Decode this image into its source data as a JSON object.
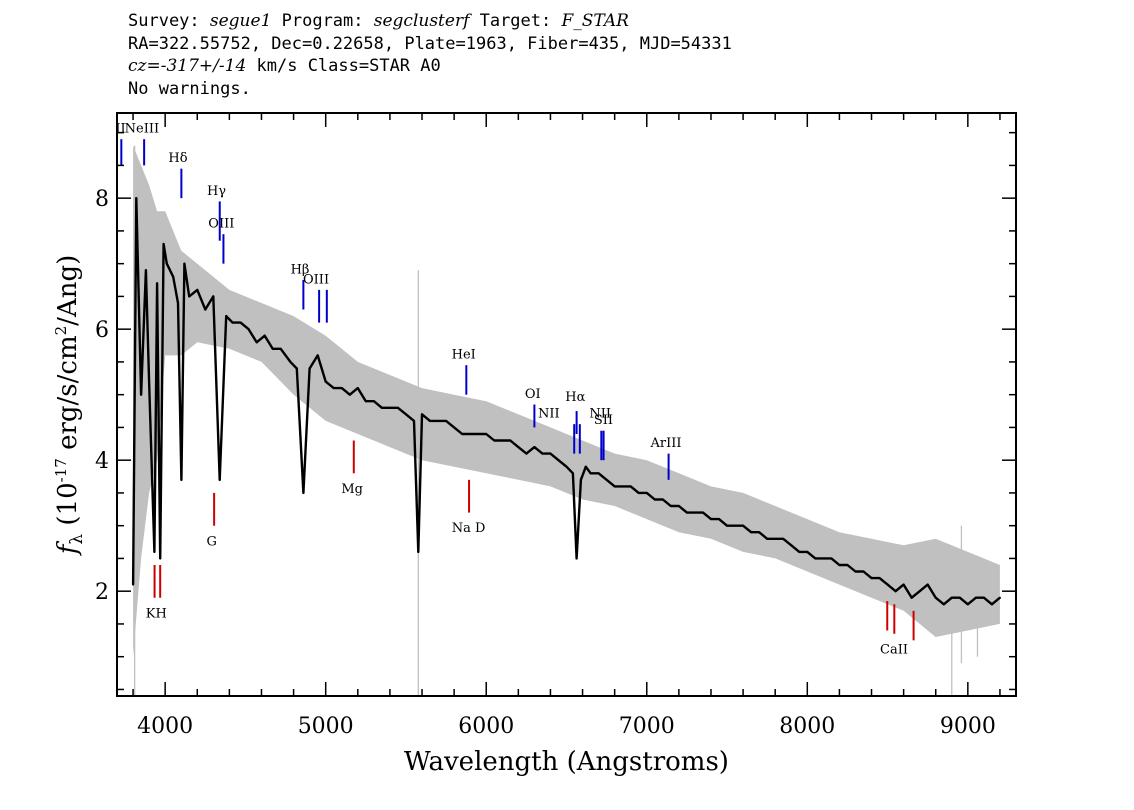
{
  "header": {
    "survey_label": "Survey: ",
    "survey": "segue1",
    "program_label": " Program: ",
    "program": "segclusterf",
    "target_label": " Target: ",
    "target": "F_STAR",
    "line2": "RA=322.55752, Dec=0.22658, Plate=1963, Fiber=435, MJD=54331",
    "cz_label": "cz=",
    "cz": "-317+/-14",
    "cz_rest": " km/s Class=STAR A0",
    "line4": "No warnings."
  },
  "colors": {
    "flux": "#000000",
    "error": "#c0c0c0",
    "emission": "#0000cc",
    "absorption": "#cc0000"
  },
  "chart_data": {
    "type": "line",
    "xlabel": "Wavelength (Angstroms)",
    "ylabel_prefix": "f",
    "ylabel_sub": "λ",
    "ylabel_mid": " (10",
    "ylabel_exp1": "-17",
    "ylabel_rest1": " erg/s/cm",
    "ylabel_exp2": "2",
    "ylabel_rest2": "/Ang)",
    "xlim": [
      3700,
      9300
    ],
    "ylim": [
      0.4,
      9.3
    ],
    "xticks_major": [
      4000,
      5000,
      6000,
      7000,
      8000,
      9000
    ],
    "xtick_labels": [
      "4000",
      "5000",
      "6000",
      "7000",
      "8000",
      "9000"
    ],
    "yticks_major": [
      2,
      4,
      6,
      8
    ],
    "ytick_labels": [
      "2",
      "4",
      "6",
      "8"
    ],
    "series": [
      {
        "role": "flux",
        "x": [
          3800,
          3820,
          3850,
          3880,
          3900,
          3933,
          3950,
          3969,
          3990,
          4010,
          4050,
          4080,
          4101,
          4120,
          4150,
          4200,
          4250,
          4300,
          4340,
          4380,
          4420,
          4470,
          4520,
          4570,
          4620,
          4670,
          4720,
          4780,
          4820,
          4861,
          4900,
          4950,
          5000,
          5050,
          5100,
          5150,
          5200,
          5250,
          5300,
          5350,
          5400,
          5450,
          5500,
          5550,
          5577,
          5600,
          5650,
          5700,
          5750,
          5800,
          5850,
          5900,
          5950,
          6000,
          6050,
          6100,
          6150,
          6200,
          6250,
          6300,
          6350,
          6400,
          6450,
          6500,
          6540,
          6563,
          6590,
          6620,
          6650,
          6700,
          6750,
          6800,
          6850,
          6900,
          6950,
          7000,
          7050,
          7100,
          7150,
          7200,
          7250,
          7300,
          7350,
          7400,
          7450,
          7500,
          7550,
          7600,
          7650,
          7700,
          7750,
          7800,
          7850,
          7900,
          7950,
          8000,
          8050,
          8100,
          8150,
          8200,
          8250,
          8300,
          8350,
          8400,
          8450,
          8500,
          8550,
          8600,
          8650,
          8700,
          8750,
          8800,
          8850,
          8900,
          8950,
          9000,
          9050,
          9100,
          9150,
          9200
        ],
        "values": [
          2.1,
          8.0,
          5.0,
          6.9,
          5.2,
          2.6,
          6.7,
          2.5,
          7.3,
          7.0,
          6.8,
          6.4,
          3.7,
          7.0,
          6.5,
          6.6,
          6.3,
          6.5,
          3.7,
          6.2,
          6.1,
          6.1,
          6.0,
          5.8,
          5.9,
          5.7,
          5.7,
          5.5,
          5.4,
          3.5,
          5.4,
          5.6,
          5.2,
          5.1,
          5.1,
          5.0,
          5.1,
          4.9,
          4.9,
          4.8,
          4.8,
          4.8,
          4.7,
          4.6,
          2.6,
          4.7,
          4.6,
          4.6,
          4.6,
          4.5,
          4.4,
          4.4,
          4.4,
          4.4,
          4.3,
          4.3,
          4.3,
          4.2,
          4.1,
          4.2,
          4.1,
          4.1,
          4.0,
          3.9,
          3.8,
          2.5,
          3.7,
          3.9,
          3.8,
          3.8,
          3.7,
          3.6,
          3.6,
          3.6,
          3.5,
          3.5,
          3.4,
          3.4,
          3.3,
          3.3,
          3.2,
          3.2,
          3.2,
          3.1,
          3.1,
          3.0,
          3.0,
          3.0,
          2.9,
          2.9,
          2.8,
          2.8,
          2.8,
          2.7,
          2.6,
          2.6,
          2.5,
          2.5,
          2.5,
          2.4,
          2.4,
          2.3,
          2.3,
          2.2,
          2.2,
          2.1,
          2.0,
          2.1,
          1.9,
          2.0,
          2.1,
          1.9,
          1.8,
          1.9,
          1.9,
          1.8,
          1.9,
          1.9,
          1.8,
          1.9
        ]
      },
      {
        "role": "error-envelope",
        "x": [
          3800,
          3850,
          3900,
          3950,
          4000,
          4100,
          4200,
          4400,
          4600,
          4800,
          5000,
          5200,
          5400,
          5600,
          5800,
          6000,
          6200,
          6400,
          6600,
          6800,
          7000,
          7200,
          7400,
          7600,
          7800,
          8000,
          8200,
          8400,
          8600,
          8800,
          9000,
          9200
        ],
        "upper": [
          8.8,
          8.5,
          8.2,
          7.8,
          7.8,
          7.2,
          7.0,
          6.6,
          6.4,
          6.2,
          5.9,
          5.5,
          5.3,
          5.1,
          5.0,
          4.9,
          4.7,
          4.5,
          4.3,
          4.1,
          4.0,
          3.8,
          3.6,
          3.5,
          3.3,
          3.1,
          2.9,
          2.8,
          2.7,
          2.8,
          2.6,
          2.4
        ],
        "lower": [
          1.0,
          2.5,
          3.5,
          4.0,
          5.6,
          5.6,
          5.8,
          5.7,
          5.5,
          5.0,
          4.6,
          4.4,
          4.2,
          4.0,
          3.9,
          3.8,
          3.7,
          3.6,
          3.4,
          3.3,
          3.1,
          2.9,
          2.8,
          2.6,
          2.5,
          2.3,
          2.1,
          1.9,
          1.7,
          1.3,
          1.4,
          1.5
        ]
      }
    ],
    "spikes": [
      {
        "x": 3810,
        "top": 8.8,
        "bottom": 0.4
      },
      {
        "x": 5577,
        "top": 6.9,
        "bottom": 0.4
      },
      {
        "x": 8900,
        "top": 2.2,
        "bottom": 0.4
      },
      {
        "x": 8960,
        "top": 3.0,
        "bottom": 0.9
      },
      {
        "x": 9060,
        "top": 2.4,
        "bottom": 1.0
      }
    ],
    "emission_lines": [
      {
        "label": "II",
        "x": 3727,
        "y0": 8.5,
        "y1": 8.9,
        "lx": 3722,
        "ly": 9.0
      },
      {
        "label": "NeIII",
        "x": 3869,
        "y0": 8.5,
        "y1": 8.9,
        "lx": 3855,
        "ly": 9.0
      },
      {
        "label": "Hδ",
        "x": 4101,
        "y0": 8.0,
        "y1": 8.45,
        "lx": 4080,
        "ly": 8.55
      },
      {
        "label": "Hγ",
        "x": 4340,
        "y0": 7.35,
        "y1": 7.95,
        "lx": 4320,
        "ly": 8.05
      },
      {
        "label": "OIII",
        "x": 4363,
        "y0": 7.0,
        "y1": 7.45,
        "lx": 4350,
        "ly": 7.55
      },
      {
        "label": "Hβ",
        "x": 4861,
        "y0": 6.3,
        "y1": 6.75,
        "lx": 4840,
        "ly": 6.85
      },
      {
        "label": "OIII",
        "x": 4959,
        "y0": 6.1,
        "y1": 6.6,
        "lx": 4940,
        "ly": 6.7
      },
      {
        "label": "",
        "x": 5007,
        "y0": 6.1,
        "y1": 6.6,
        "lx": 5007,
        "ly": 6.7
      },
      {
        "label": "HeI",
        "x": 5876,
        "y0": 5.0,
        "y1": 5.45,
        "lx": 5860,
        "ly": 5.55
      },
      {
        "label": "OI",
        "x": 6300,
        "y0": 4.5,
        "y1": 4.85,
        "lx": 6290,
        "ly": 4.95
      },
      {
        "label": "NII",
        "x": 6548,
        "y0": 4.1,
        "y1": 4.55,
        "lx": 6390,
        "ly": 4.65
      },
      {
        "label": "Hα",
        "x": 6563,
        "y0": 4.4,
        "y1": 4.75,
        "lx": 6555,
        "ly": 4.9
      },
      {
        "label": "",
        "x": 6583,
        "y0": 4.1,
        "y1": 4.55,
        "lx": 6583,
        "ly": 4.65
      },
      {
        "label": "NII",
        "x": 6717,
        "y0": 4.0,
        "y1": 4.45,
        "lx": 6710,
        "ly": 4.65
      },
      {
        "label": "SII",
        "x": 6731,
        "y0": 4.0,
        "y1": 4.45,
        "lx": 6730,
        "ly": 4.55
      },
      {
        "label": "ArIII",
        "x": 7136,
        "y0": 3.7,
        "y1": 4.1,
        "lx": 7120,
        "ly": 4.2
      }
    ],
    "absorption_lines": [
      {
        "label": "KH",
        "x": 3934,
        "y0": 1.9,
        "y1": 2.4,
        "lx": 3945,
        "ly": 1.6
      },
      {
        "label": "",
        "x": 3969,
        "y0": 1.9,
        "y1": 2.4,
        "lx": 3969,
        "ly": 1.6
      },
      {
        "label": "G",
        "x": 4305,
        "y0": 3.0,
        "y1": 3.5,
        "lx": 4290,
        "ly": 2.7
      },
      {
        "label": "Mg",
        "x": 5175,
        "y0": 3.8,
        "y1": 4.3,
        "lx": 5165,
        "ly": 3.5
      },
      {
        "label": "Na D",
        "x": 5893,
        "y0": 3.2,
        "y1": 3.7,
        "lx": 5890,
        "ly": 2.9
      },
      {
        "label": "CaII",
        "x": 8498,
        "y0": 1.4,
        "y1": 1.85,
        "lx": 8540,
        "ly": 1.05
      },
      {
        "label": "",
        "x": 8542,
        "y0": 1.35,
        "y1": 1.8,
        "lx": 8542,
        "ly": 1.05
      },
      {
        "label": "",
        "x": 8662,
        "y0": 1.25,
        "y1": 1.7,
        "lx": 8662,
        "ly": 1.05
      }
    ]
  }
}
